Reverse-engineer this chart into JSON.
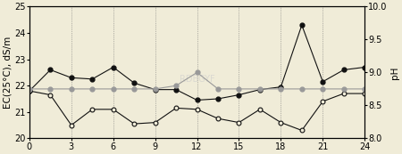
{
  "x": [
    0,
    1.5,
    3,
    4.5,
    6,
    7.5,
    9,
    10.5,
    12,
    13.5,
    15,
    16.5,
    18,
    19.5,
    21,
    22.5,
    24
  ],
  "ec_filled": [
    21.8,
    22.6,
    22.3,
    22.25,
    22.7,
    22.1,
    21.85,
    21.85,
    21.45,
    21.5,
    21.65,
    21.85,
    21.95,
    24.3,
    22.15,
    22.6,
    22.7
  ],
  "ec_open": [
    21.8,
    21.65,
    20.5,
    21.1,
    21.1,
    20.55,
    20.6,
    21.15,
    21.1,
    20.75,
    20.6,
    21.1,
    20.6,
    20.3,
    21.4,
    21.7,
    21.7
  ],
  "ph_gray": [
    8.75,
    8.75,
    8.75,
    8.75,
    8.75,
    8.75,
    8.75,
    8.8,
    9.0,
    8.75,
    8.75,
    8.75,
    8.75,
    8.75,
    8.75,
    8.75,
    8.75
  ],
  "xlim": [
    0,
    24
  ],
  "ec_ylim": [
    20,
    25
  ],
  "ph_ylim": [
    8.0,
    10.0
  ],
  "ec_yticks": [
    20,
    21,
    22,
    23,
    24,
    25
  ],
  "ph_yticks": [
    8.0,
    8.5,
    9.0,
    9.5,
    10.0
  ],
  "xticks": [
    0,
    3,
    6,
    9,
    12,
    15,
    18,
    21,
    24
  ],
  "ylabel_fontsize": 7.5,
  "tick_fontsize": 7,
  "bg_color": "#f0ecd8",
  "grid_color": "#777777",
  "filled_color": "#111111",
  "open_color": "#111111",
  "gray_color": "#999999",
  "ec_ylabel": "EC(25°C), dS/m",
  "ph_ylabel": "pH",
  "watermark": "RDBGYF"
}
